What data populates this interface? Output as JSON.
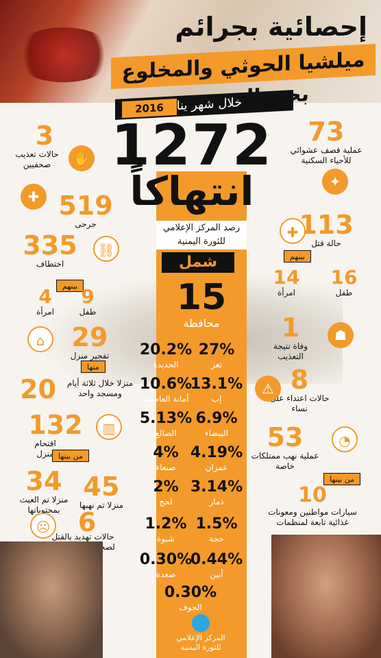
{
  "header": {
    "title_line1": "إحصائية بجرائم",
    "title_line2": "ميلشيا الحوثي والمخلوع بحق المدنيين",
    "period": "خلال شهر يناير",
    "year": "2016"
  },
  "hero": {
    "total": "1272",
    "word": "انتهاكاً",
    "monitor": "رصد المركز الإعلامي للثورة اليمنية"
  },
  "region": {
    "name": "شمل",
    "count": "15",
    "count_label": "محافظة"
  },
  "governorates": [
    {
      "pct": "27%",
      "name": "تعز"
    },
    {
      "pct": "20.2%",
      "name": "الحديدة"
    },
    {
      "pct": "13.1%",
      "name": "إب"
    },
    {
      "pct": "10.6%",
      "name": "أمانة العاصمة"
    },
    {
      "pct": "6.9%",
      "name": "البيضاء"
    },
    {
      "pct": "5.13%",
      "name": "الضالع"
    },
    {
      "pct": "4.19%",
      "name": "عمران"
    },
    {
      "pct": "4%",
      "name": "صنعاء"
    },
    {
      "pct": "3.14%",
      "name": "ذمار"
    },
    {
      "pct": "2%",
      "name": "لحج"
    },
    {
      "pct": "1.5%",
      "name": "حجة"
    },
    {
      "pct": "1.2%",
      "name": "شبوة"
    },
    {
      "pct": "0.44%",
      "name": "أبين"
    },
    {
      "pct": "0.30%",
      "name": "صعدة"
    },
    {
      "pct": "0.30%",
      "name": "الجوف"
    }
  ],
  "right_stats": {
    "shelling": {
      "num": "73",
      "label": "عملية قصف عشوائي للأحياء السكنية"
    },
    "killing": {
      "num": "113",
      "label": "حالة قتل",
      "tag": "بينهم"
    },
    "killed_children": {
      "num": "16",
      "label": "طفل"
    },
    "killed_women": {
      "num": "14",
      "label": "امرأة"
    },
    "torture_death": {
      "num": "1",
      "label": "وفاة نتيجة التعذيب"
    },
    "assault_women": {
      "num": "8",
      "label": "حالات اعتداء على نساء"
    },
    "looting": {
      "num": "53",
      "label": "عملية نهب ممتلكات خاصة",
      "tag": "من بينها"
    },
    "vehicles": {
      "num": "10",
      "label": "سيارات مواطنين ومعونات غذائية تابعة لمنظمات"
    }
  },
  "left_stats": {
    "journalist_torture": {
      "num": "3",
      "label": "حالات تعذيب صحفيين"
    },
    "injured": {
      "num": "519",
      "label": "جرحى"
    },
    "kidnapping": {
      "num": "335",
      "label": "اختطاف",
      "tag": "بينهم"
    },
    "kidnapped_children": {
      "num": "9",
      "label": "طفل"
    },
    "kidnapped_women": {
      "num": "4",
      "label": "امرأة"
    },
    "house_bombing": {
      "num": "29",
      "label": "تفجير منزل",
      "tag": "منها"
    },
    "houses_3days": {
      "num": "20",
      "label": "منزلا خلال ثلاثة أيام ومسجد واحد"
    },
    "house_raids": {
      "num": "132",
      "label": "اقتحام منزل",
      "tag": "من بينها"
    },
    "tampered": {
      "num": "34",
      "label": "منزلا تم العبث بمحتوياتها"
    },
    "looted_houses": {
      "num": "45",
      "label": "منزلا تم نهبها"
    },
    "threats": {
      "num": "6",
      "label": "حالات تهديد بالقتل لصحفيين وناشطين"
    }
  },
  "logo": {
    "text": "المركز الإعلامي للثورة اليمنية"
  },
  "colors": {
    "accent": "#f39a2a",
    "dark": "#111111",
    "background": "#f7f4ef"
  },
  "icons": [
    "torture-icon",
    "injured-icon",
    "kidnap-icon",
    "child-icon",
    "woman-icon",
    "house-bomb-icon",
    "house-raid-icon",
    "threat-icon",
    "shell-icon",
    "kill-icon",
    "torture-death-icon",
    "assault-icon",
    "loot-icon"
  ]
}
